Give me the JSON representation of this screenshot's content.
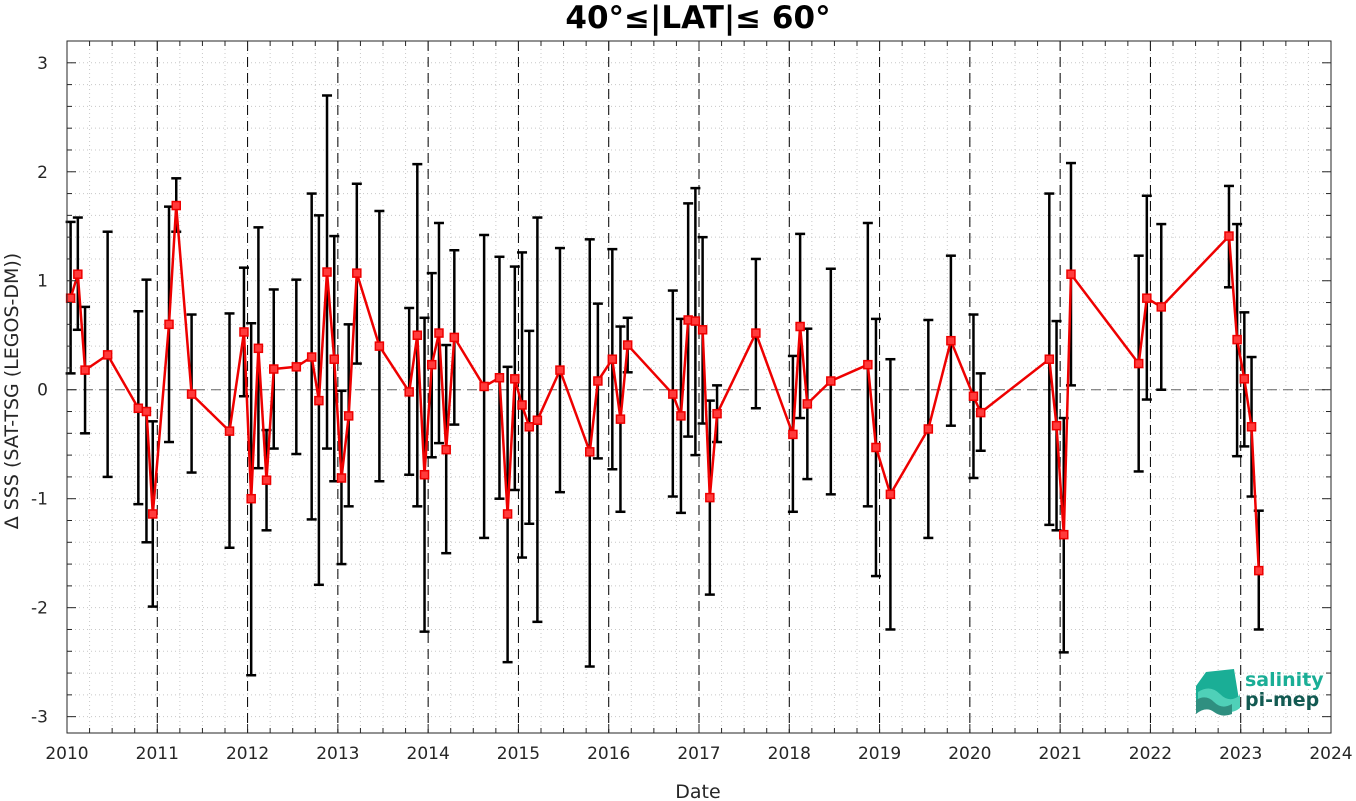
{
  "chart_data": {
    "type": "line",
    "title": "40°≤|LAT|≤ 60°",
    "xlabel": "Date",
    "ylabel": "Δ SSS (SAT-TSG (LEGOS-DM))",
    "xlim": [
      2010,
      2024
    ],
    "ylim": [
      -3.15,
      3.2
    ],
    "x_ticks": [
      "2010",
      "2011",
      "2012",
      "2013",
      "2014",
      "2015",
      "2016",
      "2017",
      "2018",
      "2019",
      "2020",
      "2021",
      "2022",
      "2023",
      "2024"
    ],
    "y_ticks": [
      "3",
      "2",
      "1",
      "0",
      "-1",
      "-2",
      "-3"
    ],
    "year_lines": [
      "2011",
      "2012",
      "2013",
      "2014",
      "2015",
      "2016",
      "2017",
      "2018",
      "2019",
      "2020",
      "2021",
      "2022",
      "2023"
    ],
    "zero_line": 0,
    "grid": "minor dotted",
    "series": [
      {
        "color": "#ee0000",
        "error_color": "#000000",
        "points": [
          {
            "x": 2010.04,
            "y": 0.84,
            "lo": 0.15,
            "hi": 1.54
          },
          {
            "x": 2010.12,
            "y": 1.06,
            "lo": 0.55,
            "hi": 1.58
          },
          {
            "x": 2010.2,
            "y": 0.18,
            "lo": -0.4,
            "hi": 0.76
          },
          {
            "x": 2010.45,
            "y": 0.32,
            "lo": -0.8,
            "hi": 1.45
          },
          {
            "x": 2010.79,
            "y": -0.17,
            "lo": -1.05,
            "hi": 0.72
          },
          {
            "x": 2010.88,
            "y": -0.2,
            "lo": -1.4,
            "hi": 1.01
          },
          {
            "x": 2010.95,
            "y": -1.14,
            "lo": -1.99,
            "hi": -0.29
          },
          {
            "x": 2011.13,
            "y": 0.6,
            "lo": -0.48,
            "hi": 1.68
          },
          {
            "x": 2011.21,
            "y": 1.69,
            "lo": 1.45,
            "hi": 1.94
          },
          {
            "x": 2011.38,
            "y": -0.04,
            "lo": -0.76,
            "hi": 0.69
          },
          {
            "x": 2011.8,
            "y": -0.38,
            "lo": -1.45,
            "hi": 0.7
          },
          {
            "x": 2011.96,
            "y": 0.53,
            "lo": -0.06,
            "hi": 1.12
          },
          {
            "x": 2012.04,
            "y": -1.0,
            "lo": -2.62,
            "hi": 0.61
          },
          {
            "x": 2012.12,
            "y": 0.38,
            "lo": -0.72,
            "hi": 1.49
          },
          {
            "x": 2012.21,
            "y": -0.83,
            "lo": -1.29,
            "hi": -0.37
          },
          {
            "x": 2012.29,
            "y": 0.19,
            "lo": -0.54,
            "hi": 0.92
          },
          {
            "x": 2012.54,
            "y": 0.21,
            "lo": -0.59,
            "hi": 1.01
          },
          {
            "x": 2012.71,
            "y": 0.3,
            "lo": -1.19,
            "hi": 1.8
          },
          {
            "x": 2012.79,
            "y": -0.1,
            "lo": -1.79,
            "hi": 1.6
          },
          {
            "x": 2012.88,
            "y": 1.08,
            "lo": -0.54,
            "hi": 2.7
          },
          {
            "x": 2012.96,
            "y": 0.28,
            "lo": -0.84,
            "hi": 1.41
          },
          {
            "x": 2013.04,
            "y": -0.81,
            "lo": -1.6,
            "hi": -0.01
          },
          {
            "x": 2013.12,
            "y": -0.24,
            "lo": -1.07,
            "hi": 0.6
          },
          {
            "x": 2013.21,
            "y": 1.07,
            "lo": 0.24,
            "hi": 1.89
          },
          {
            "x": 2013.46,
            "y": 0.4,
            "lo": -0.84,
            "hi": 1.64
          },
          {
            "x": 2013.79,
            "y": -0.02,
            "lo": -0.78,
            "hi": 0.75
          },
          {
            "x": 2013.88,
            "y": 0.5,
            "lo": -1.07,
            "hi": 2.07
          },
          {
            "x": 2013.96,
            "y": -0.78,
            "lo": -2.22,
            "hi": 0.66
          },
          {
            "x": 2014.04,
            "y": 0.23,
            "lo": -0.62,
            "hi": 1.07
          },
          {
            "x": 2014.12,
            "y": 0.52,
            "lo": -0.49,
            "hi": 1.53
          },
          {
            "x": 2014.2,
            "y": -0.55,
            "lo": -1.5,
            "hi": 0.41
          },
          {
            "x": 2014.29,
            "y": 0.48,
            "lo": -0.32,
            "hi": 1.28
          },
          {
            "x": 2014.62,
            "y": 0.03,
            "lo": -1.36,
            "hi": 1.42
          },
          {
            "x": 2014.79,
            "y": 0.11,
            "lo": -1.0,
            "hi": 1.22
          },
          {
            "x": 2014.88,
            "y": -1.14,
            "lo": -2.5,
            "hi": 0.21
          },
          {
            "x": 2014.96,
            "y": 0.1,
            "lo": -0.92,
            "hi": 1.13
          },
          {
            "x": 2015.04,
            "y": -0.14,
            "lo": -1.54,
            "hi": 1.26
          },
          {
            "x": 2015.12,
            "y": -0.34,
            "lo": -1.23,
            "hi": 0.54
          },
          {
            "x": 2015.21,
            "y": -0.28,
            "lo": -2.13,
            "hi": 1.58
          },
          {
            "x": 2015.46,
            "y": 0.18,
            "lo": -0.94,
            "hi": 1.3
          },
          {
            "x": 2015.79,
            "y": -0.57,
            "lo": -2.54,
            "hi": 1.38
          },
          {
            "x": 2015.88,
            "y": 0.08,
            "lo": -0.63,
            "hi": 0.79
          },
          {
            "x": 2016.04,
            "y": 0.28,
            "lo": -0.73,
            "hi": 1.29
          },
          {
            "x": 2016.13,
            "y": -0.27,
            "lo": -1.12,
            "hi": 0.58
          },
          {
            "x": 2016.21,
            "y": 0.41,
            "lo": 0.16,
            "hi": 0.66
          },
          {
            "x": 2016.71,
            "y": -0.04,
            "lo": -0.98,
            "hi": 0.91
          },
          {
            "x": 2016.8,
            "y": -0.24,
            "lo": -1.13,
            "hi": 0.65
          },
          {
            "x": 2016.88,
            "y": 0.64,
            "lo": -0.43,
            "hi": 1.71
          },
          {
            "x": 2016.96,
            "y": 0.63,
            "lo": -0.6,
            "hi": 1.85
          },
          {
            "x": 2017.04,
            "y": 0.55,
            "lo": -0.31,
            "hi": 1.4
          },
          {
            "x": 2017.12,
            "y": -0.99,
            "lo": -1.88,
            "hi": -0.1
          },
          {
            "x": 2017.2,
            "y": -0.22,
            "lo": -0.48,
            "hi": 0.04
          },
          {
            "x": 2017.63,
            "y": 0.52,
            "lo": -0.17,
            "hi": 1.2
          },
          {
            "x": 2018.04,
            "y": -0.41,
            "lo": -1.12,
            "hi": 0.31
          },
          {
            "x": 2018.12,
            "y": 0.58,
            "lo": -0.26,
            "hi": 1.43
          },
          {
            "x": 2018.2,
            "y": -0.13,
            "lo": -0.82,
            "hi": 0.56
          },
          {
            "x": 2018.46,
            "y": 0.08,
            "lo": -0.96,
            "hi": 1.11
          },
          {
            "x": 2018.87,
            "y": 0.23,
            "lo": -1.07,
            "hi": 1.53
          },
          {
            "x": 2018.96,
            "y": -0.53,
            "lo": -1.71,
            "hi": 0.65
          },
          {
            "x": 2019.12,
            "y": -0.96,
            "lo": -2.2,
            "hi": 0.28
          },
          {
            "x": 2019.54,
            "y": -0.36,
            "lo": -1.36,
            "hi": 0.64
          },
          {
            "x": 2019.79,
            "y": 0.45,
            "lo": -0.33,
            "hi": 1.23
          },
          {
            "x": 2020.04,
            "y": -0.06,
            "lo": -0.81,
            "hi": 0.69
          },
          {
            "x": 2020.12,
            "y": -0.21,
            "lo": -0.56,
            "hi": 0.15
          },
          {
            "x": 2020.88,
            "y": 0.28,
            "lo": -1.24,
            "hi": 1.8
          },
          {
            "x": 2020.96,
            "y": -0.33,
            "lo": -1.29,
            "hi": 0.63
          },
          {
            "x": 2021.04,
            "y": -1.33,
            "lo": -2.41,
            "hi": -0.26
          },
          {
            "x": 2021.12,
            "y": 1.06,
            "lo": 0.04,
            "hi": 2.08
          },
          {
            "x": 2021.87,
            "y": 0.24,
            "lo": -0.75,
            "hi": 1.23
          },
          {
            "x": 2021.96,
            "y": 0.84,
            "lo": -0.09,
            "hi": 1.78
          },
          {
            "x": 2022.12,
            "y": 0.76,
            "lo": 0.0,
            "hi": 1.52
          },
          {
            "x": 2022.87,
            "y": 1.41,
            "lo": 0.94,
            "hi": 1.87
          },
          {
            "x": 2022.96,
            "y": 0.46,
            "lo": -0.61,
            "hi": 1.52
          },
          {
            "x": 2023.04,
            "y": 0.1,
            "lo": -0.52,
            "hi": 0.71
          },
          {
            "x": 2023.12,
            "y": -0.34,
            "lo": -0.98,
            "hi": 0.3
          },
          {
            "x": 2023.2,
            "y": -1.66,
            "lo": -2.2,
            "hi": -1.11
          }
        ]
      }
    ]
  },
  "logo": {
    "line1": "salinity",
    "line2": "pi-mep",
    "color1": "#1aae96",
    "color2": "#135a52"
  }
}
